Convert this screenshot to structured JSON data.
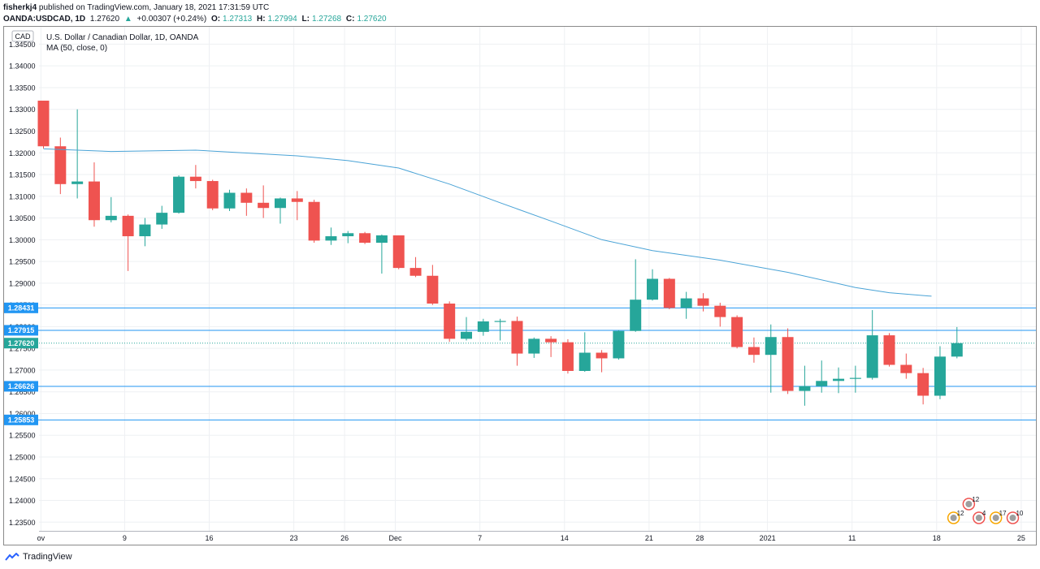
{
  "header": {
    "user": "fisherkj4",
    "published": "published on TradingView.com, January 18, 2021 17:31:59 UTC",
    "symbol": "OANDA:USDCAD, 1D",
    "last": "1.27620",
    "change_arrow": "▲",
    "change": "+0.00307 (+0.24%)",
    "o_label": "O:",
    "o_value": "1.27313",
    "h_label": "H:",
    "h_value": "1.27994",
    "l_label": "L:",
    "l_value": "1.27268",
    "c_label": "C:",
    "c_value": "1.27620"
  },
  "legend": {
    "currency": "CAD",
    "title": "U.S. Dollar / Canadian Dollar, 1D, OANDA",
    "indicator": "MA (50, close, 0)"
  },
  "footer": {
    "brand": "TradingView"
  },
  "colors": {
    "up": "#26a69a",
    "down": "#ef5350",
    "ma": "#4aa3d6",
    "level": "#2196f3",
    "grid": "#eef0f3"
  },
  "chart_data": {
    "type": "candlestick",
    "title": "U.S. Dollar / Canadian Dollar, 1D, OANDA",
    "ylim": [
      1.233,
      1.349
    ],
    "y_ticks": [
      "1.34500",
      "1.34000",
      "1.33500",
      "1.33000",
      "1.32500",
      "1.32000",
      "1.31500",
      "1.31000",
      "1.30500",
      "1.30000",
      "1.29500",
      "1.29000",
      "1.28500",
      "1.28000",
      "1.27500",
      "1.27000",
      "1.26500",
      "1.26000",
      "1.25500",
      "1.25000",
      "1.24500",
      "1.24000",
      "1.23500"
    ],
    "x_ticks": [
      {
        "i": -0.15,
        "label": "ov"
      },
      {
        "i": 4.8,
        "label": "9"
      },
      {
        "i": 9.8,
        "label": "16"
      },
      {
        "i": 14.8,
        "label": "23"
      },
      {
        "i": 17.8,
        "label": "26"
      },
      {
        "i": 20.8,
        "label": "Dec"
      },
      {
        "i": 25.8,
        "label": "7"
      },
      {
        "i": 30.8,
        "label": "14"
      },
      {
        "i": 35.8,
        "label": "21"
      },
      {
        "i": 38.8,
        "label": "28"
      },
      {
        "i": 42.8,
        "label": "2021"
      },
      {
        "i": 47.8,
        "label": "11"
      },
      {
        "i": 52.8,
        "label": "18"
      },
      {
        "i": 57.8,
        "label": "25"
      }
    ],
    "candles": [
      {
        "o": 1.332,
        "h": 1.332,
        "l": 1.321,
        "c": 1.3215
      },
      {
        "o": 1.3215,
        "h": 1.3235,
        "l": 1.3105,
        "c": 1.3128
      },
      {
        "o": 1.3128,
        "h": 1.33,
        "l": 1.3095,
        "c": 1.3134
      },
      {
        "o": 1.3134,
        "h": 1.3178,
        "l": 1.303,
        "c": 1.3045
      },
      {
        "o": 1.3045,
        "h": 1.3098,
        "l": 1.304,
        "c": 1.3055
      },
      {
        "o": 1.3055,
        "h": 1.3058,
        "l": 1.2928,
        "c": 1.3008
      },
      {
        "o": 1.3008,
        "h": 1.305,
        "l": 1.2985,
        "c": 1.3035
      },
      {
        "o": 1.3035,
        "h": 1.3078,
        "l": 1.3025,
        "c": 1.3062
      },
      {
        "o": 1.3062,
        "h": 1.3148,
        "l": 1.306,
        "c": 1.3145
      },
      {
        "o": 1.3145,
        "h": 1.3172,
        "l": 1.3118,
        "c": 1.3135
      },
      {
        "o": 1.3135,
        "h": 1.3138,
        "l": 1.3068,
        "c": 1.3072
      },
      {
        "o": 1.3072,
        "h": 1.3115,
        "l": 1.3066,
        "c": 1.3108
      },
      {
        "o": 1.3108,
        "h": 1.3118,
        "l": 1.3055,
        "c": 1.3085
      },
      {
        "o": 1.3085,
        "h": 1.3125,
        "l": 1.305,
        "c": 1.3073
      },
      {
        "o": 1.3073,
        "h": 1.3097,
        "l": 1.3037,
        "c": 1.3095
      },
      {
        "o": 1.3095,
        "h": 1.3112,
        "l": 1.3045,
        "c": 1.3087
      },
      {
        "o": 1.3087,
        "h": 1.3092,
        "l": 1.2993,
        "c": 1.2998
      },
      {
        "o": 1.2998,
        "h": 1.3028,
        "l": 1.2988,
        "c": 1.3008
      },
      {
        "o": 1.3008,
        "h": 1.302,
        "l": 1.2992,
        "c": 1.3015
      },
      {
        "o": 1.3015,
        "h": 1.3018,
        "l": 1.299,
        "c": 1.2993
      },
      {
        "o": 1.2993,
        "h": 1.3012,
        "l": 1.2922,
        "c": 1.301
      },
      {
        "o": 1.301,
        "h": 1.301,
        "l": 1.2932,
        "c": 1.2935
      },
      {
        "o": 1.2935,
        "h": 1.296,
        "l": 1.2914,
        "c": 1.2917
      },
      {
        "o": 1.2917,
        "h": 1.2942,
        "l": 1.285,
        "c": 1.2853
      },
      {
        "o": 1.2853,
        "h": 1.2858,
        "l": 1.2765,
        "c": 1.2772
      },
      {
        "o": 1.2772,
        "h": 1.2822,
        "l": 1.2768,
        "c": 1.2788
      },
      {
        "o": 1.2788,
        "h": 1.2818,
        "l": 1.2779,
        "c": 1.2812
      },
      {
        "o": 1.2812,
        "h": 1.2818,
        "l": 1.2768,
        "c": 1.2813
      },
      {
        "o": 1.2813,
        "h": 1.2823,
        "l": 1.271,
        "c": 1.2738
      },
      {
        "o": 1.2738,
        "h": 1.2775,
        "l": 1.2728,
        "c": 1.2772
      },
      {
        "o": 1.2772,
        "h": 1.2778,
        "l": 1.273,
        "c": 1.2764
      },
      {
        "o": 1.2764,
        "h": 1.2771,
        "l": 1.2692,
        "c": 1.2698
      },
      {
        "o": 1.2698,
        "h": 1.2787,
        "l": 1.2696,
        "c": 1.274
      },
      {
        "o": 1.274,
        "h": 1.2746,
        "l": 1.2695,
        "c": 1.2727
      },
      {
        "o": 1.2727,
        "h": 1.2792,
        "l": 1.2724,
        "c": 1.279
      },
      {
        "o": 1.279,
        "h": 1.2955,
        "l": 1.2788,
        "c": 1.2862
      },
      {
        "o": 1.2862,
        "h": 1.2932,
        "l": 1.286,
        "c": 1.291
      },
      {
        "o": 1.291,
        "h": 1.2912,
        "l": 1.284,
        "c": 1.2843
      },
      {
        "o": 1.2843,
        "h": 1.288,
        "l": 1.2818,
        "c": 1.2865
      },
      {
        "o": 1.2865,
        "h": 1.2877,
        "l": 1.2835,
        "c": 1.2848
      },
      {
        "o": 1.2848,
        "h": 1.2855,
        "l": 1.28,
        "c": 1.2822
      },
      {
        "o": 1.2822,
        "h": 1.2826,
        "l": 1.275,
        "c": 1.2753
      },
      {
        "o": 1.2753,
        "h": 1.2775,
        "l": 1.2717,
        "c": 1.2735
      },
      {
        "o": 1.2735,
        "h": 1.2805,
        "l": 1.2648,
        "c": 1.2776
      },
      {
        "o": 1.2776,
        "h": 1.2796,
        "l": 1.2645,
        "c": 1.2652
      },
      {
        "o": 1.2652,
        "h": 1.271,
        "l": 1.2618,
        "c": 1.2663
      },
      {
        "o": 1.2663,
        "h": 1.2722,
        "l": 1.2648,
        "c": 1.2675
      },
      {
        "o": 1.2675,
        "h": 1.2706,
        "l": 1.2647,
        "c": 1.268
      },
      {
        "o": 1.268,
        "h": 1.271,
        "l": 1.2648,
        "c": 1.2682
      },
      {
        "o": 1.2682,
        "h": 1.2838,
        "l": 1.2678,
        "c": 1.278
      },
      {
        "o": 1.278,
        "h": 1.2785,
        "l": 1.2708,
        "c": 1.2712
      },
      {
        "o": 1.2712,
        "h": 1.2738,
        "l": 1.268,
        "c": 1.2693
      },
      {
        "o": 1.2693,
        "h": 1.2705,
        "l": 1.2621,
        "c": 1.2641
      },
      {
        "o": 1.2641,
        "h": 1.2755,
        "l": 1.2633,
        "c": 1.2731
      },
      {
        "o": 1.2731,
        "h": 1.2799,
        "l": 1.2727,
        "c": 1.2762
      }
    ],
    "ma_points": [
      [
        0,
        1.3209
      ],
      [
        4,
        1.3203
      ],
      [
        9,
        1.3206
      ],
      [
        15,
        1.3193
      ],
      [
        18,
        1.3182
      ],
      [
        21,
        1.3165
      ],
      [
        24,
        1.3128
      ],
      [
        27,
        1.3085
      ],
      [
        30,
        1.3043
      ],
      [
        33,
        1.3
      ],
      [
        36,
        1.2975
      ],
      [
        40,
        1.2953
      ],
      [
        44,
        1.2925
      ],
      [
        48,
        1.289
      ],
      [
        50,
        1.2878
      ],
      [
        52.5,
        1.287
      ]
    ],
    "price_levels": [
      {
        "value": 1.28431,
        "label": "1.28431",
        "style": "level"
      },
      {
        "value": 1.27915,
        "label": "1.27915",
        "style": "level"
      },
      {
        "value": 1.2762,
        "label": "1.27620",
        "style": "current"
      },
      {
        "value": 1.26626,
        "label": "1.26626",
        "style": "level"
      },
      {
        "value": 1.25853,
        "label": "1.25853",
        "style": "level"
      }
    ],
    "events": [
      {
        "i": 54.7,
        "label": "12"
      },
      {
        "i": 53.8,
        "label": "12"
      },
      {
        "i": 55.3,
        "label": "4"
      },
      {
        "i": 56.3,
        "label": "17"
      },
      {
        "i": 57.3,
        "label": "10"
      }
    ]
  }
}
